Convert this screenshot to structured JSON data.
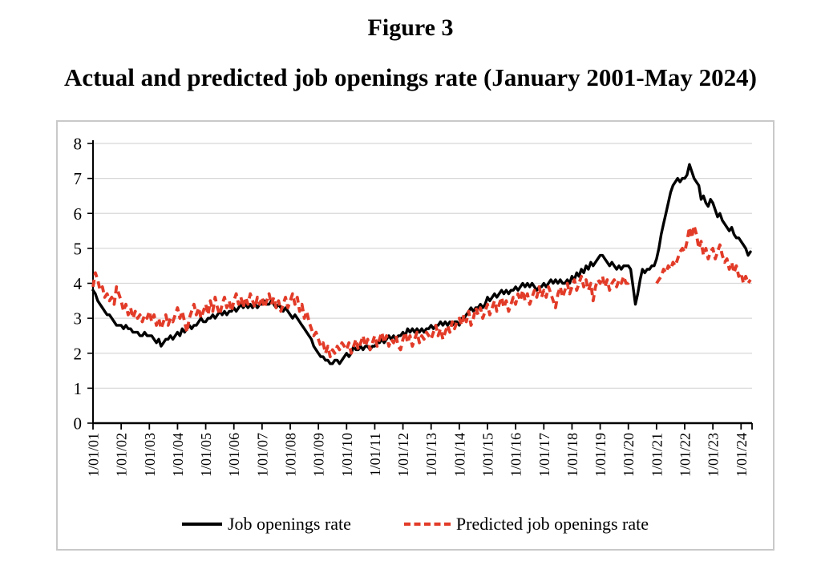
{
  "figure": {
    "label": "Figure 3",
    "title": "Actual and predicted job openings rate (January 2001-May 2024)"
  },
  "colors": {
    "actual_line": "#000000",
    "predicted_line": "#e23b28",
    "gridline": "#d8d8d8",
    "frame_border": "#c9c9c9",
    "axis": "#000000"
  },
  "chart_data": {
    "type": "line",
    "title": "Actual and predicted job openings rate (January 2001-May 2024)",
    "x_start": "1/01/01",
    "x_end": "5/01/24",
    "x_frequency": "monthly",
    "x_tick_labels": [
      "1/01/01",
      "1/01/02",
      "1/01/03",
      "1/01/04",
      "1/01/05",
      "1/01/06",
      "1/01/07",
      "1/01/08",
      "1/01/09",
      "1/01/10",
      "1/01/11",
      "1/01/12",
      "1/01/13",
      "1/01/14",
      "1/01/15",
      "1/01/16",
      "1/01/17",
      "1/01/18",
      "1/01/19",
      "1/01/20",
      "1/01/21",
      "1/01/22",
      "1/01/23",
      "1/01/24"
    ],
    "ylim": [
      0,
      8
    ],
    "y_ticks": [
      0,
      1,
      2,
      3,
      4,
      5,
      6,
      7,
      8
    ],
    "grid": "horizontal",
    "legend_position": "bottom-center",
    "series": [
      {
        "name": "Job openings rate",
        "color": "#000000",
        "style": "solid",
        "values": [
          3.8,
          3.7,
          3.5,
          3.4,
          3.3,
          3.2,
          3.1,
          3.1,
          3.0,
          2.9,
          2.8,
          2.8,
          2.8,
          2.7,
          2.8,
          2.7,
          2.7,
          2.6,
          2.6,
          2.6,
          2.5,
          2.5,
          2.6,
          2.5,
          2.5,
          2.5,
          2.4,
          2.3,
          2.4,
          2.2,
          2.3,
          2.4,
          2.4,
          2.5,
          2.4,
          2.5,
          2.6,
          2.5,
          2.7,
          2.6,
          2.7,
          2.8,
          2.7,
          2.8,
          2.8,
          2.9,
          3.0,
          2.9,
          2.9,
          3.0,
          3.0,
          3.1,
          3.0,
          3.1,
          3.2,
          3.1,
          3.2,
          3.1,
          3.2,
          3.2,
          3.3,
          3.2,
          3.3,
          3.4,
          3.3,
          3.4,
          3.3,
          3.4,
          3.3,
          3.4,
          3.3,
          3.4,
          3.4,
          3.5,
          3.4,
          3.4,
          3.5,
          3.4,
          3.3,
          3.4,
          3.3,
          3.2,
          3.3,
          3.2,
          3.1,
          3.0,
          3.1,
          3.0,
          2.9,
          2.8,
          2.7,
          2.6,
          2.5,
          2.4,
          2.2,
          2.1,
          2.0,
          1.9,
          1.9,
          1.8,
          1.8,
          1.7,
          1.7,
          1.8,
          1.8,
          1.7,
          1.8,
          1.9,
          2.0,
          1.9,
          2.0,
          2.2,
          2.1,
          2.1,
          2.2,
          2.1,
          2.2,
          2.2,
          2.1,
          2.2,
          2.2,
          2.3,
          2.3,
          2.4,
          2.3,
          2.4,
          2.5,
          2.4,
          2.5,
          2.4,
          2.5,
          2.5,
          2.6,
          2.5,
          2.7,
          2.6,
          2.7,
          2.6,
          2.7,
          2.6,
          2.7,
          2.6,
          2.7,
          2.7,
          2.8,
          2.7,
          2.8,
          2.8,
          2.9,
          2.8,
          2.9,
          2.8,
          2.9,
          2.8,
          2.9,
          2.9,
          2.8,
          3.0,
          3.0,
          3.1,
          3.2,
          3.3,
          3.2,
          3.3,
          3.3,
          3.4,
          3.3,
          3.4,
          3.6,
          3.5,
          3.6,
          3.7,
          3.6,
          3.7,
          3.8,
          3.7,
          3.8,
          3.7,
          3.8,
          3.8,
          3.9,
          3.8,
          3.9,
          4.0,
          3.9,
          4.0,
          3.9,
          4.0,
          3.9,
          3.8,
          3.9,
          3.9,
          4.0,
          3.9,
          4.0,
          4.1,
          4.0,
          4.1,
          4.0,
          4.1,
          4.0,
          4.0,
          4.1,
          4.0,
          4.2,
          4.1,
          4.3,
          4.2,
          4.4,
          4.3,
          4.5,
          4.4,
          4.6,
          4.5,
          4.6,
          4.7,
          4.8,
          4.8,
          4.7,
          4.6,
          4.5,
          4.6,
          4.5,
          4.4,
          4.5,
          4.4,
          4.5,
          4.5,
          4.5,
          4.4,
          3.9,
          3.4,
          3.7,
          4.1,
          4.4,
          4.3,
          4.4,
          4.4,
          4.5,
          4.5,
          4.7,
          5.0,
          5.4,
          5.7,
          6.0,
          6.3,
          6.6,
          6.8,
          6.9,
          7.0,
          6.9,
          7.0,
          7.0,
          7.1,
          7.4,
          7.2,
          7.0,
          6.9,
          6.8,
          6.4,
          6.5,
          6.3,
          6.2,
          6.4,
          6.3,
          6.1,
          5.9,
          6.0,
          5.8,
          5.7,
          5.6,
          5.5,
          5.6,
          5.4,
          5.3,
          5.3,
          5.2,
          5.1,
          5.0,
          4.8,
          4.9
        ]
      },
      {
        "name": "Predicted job openings rate",
        "color": "#e23b28",
        "style": "dashed",
        "values": [
          3.9,
          4.3,
          4.1,
          3.8,
          3.9,
          3.6,
          3.7,
          3.5,
          3.6,
          3.4,
          3.9,
          3.7,
          3.5,
          3.2,
          3.4,
          3.1,
          3.3,
          3.0,
          3.2,
          3.0,
          3.1,
          2.9,
          3.1,
          3.0,
          3.2,
          2.9,
          3.1,
          2.8,
          3.0,
          2.7,
          2.9,
          3.1,
          2.8,
          3.0,
          2.9,
          3.1,
          3.3,
          3.0,
          3.2,
          2.9,
          2.6,
          3.0,
          3.2,
          3.4,
          3.1,
          3.3,
          3.0,
          3.2,
          3.4,
          3.1,
          3.5,
          3.2,
          3.6,
          3.3,
          3.1,
          3.4,
          3.6,
          3.3,
          3.5,
          3.2,
          3.5,
          3.7,
          3.4,
          3.6,
          3.3,
          3.6,
          3.4,
          3.7,
          3.5,
          3.3,
          3.6,
          3.4,
          3.6,
          3.3,
          3.5,
          3.7,
          3.4,
          3.6,
          3.3,
          3.5,
          3.2,
          3.4,
          3.6,
          3.3,
          3.5,
          3.7,
          3.4,
          3.6,
          3.2,
          3.4,
          3.0,
          3.2,
          2.9,
          2.7,
          2.5,
          2.6,
          2.4,
          2.2,
          2.3,
          2.0,
          2.2,
          1.9,
          2.1,
          2.0,
          2.2,
          2.1,
          2.3,
          2.2,
          2.1,
          2.3,
          2.0,
          2.2,
          2.4,
          2.1,
          2.3,
          2.5,
          2.2,
          2.4,
          2.1,
          2.3,
          2.5,
          2.2,
          2.4,
          2.6,
          2.3,
          2.5,
          2.2,
          2.4,
          2.3,
          2.5,
          2.2,
          2.1,
          2.4,
          2.6,
          2.3,
          2.5,
          2.2,
          2.4,
          2.6,
          2.3,
          2.5,
          2.4,
          2.6,
          2.5,
          2.4,
          2.6,
          2.8,
          2.5,
          2.7,
          2.4,
          2.6,
          2.8,
          2.6,
          2.9,
          2.7,
          2.9,
          3.0,
          2.8,
          3.1,
          2.9,
          3.2,
          2.8,
          3.0,
          3.3,
          3.1,
          3.3,
          3.0,
          3.2,
          3.4,
          3.1,
          3.3,
          3.5,
          3.2,
          3.4,
          3.6,
          3.3,
          3.5,
          3.2,
          3.4,
          3.6,
          3.4,
          3.7,
          3.5,
          3.8,
          3.5,
          3.7,
          3.4,
          3.6,
          3.8,
          3.6,
          3.9,
          3.6,
          3.8,
          3.6,
          3.9,
          3.7,
          3.5,
          3.3,
          3.7,
          3.9,
          3.6,
          3.8,
          4.0,
          3.7,
          3.9,
          4.1,
          3.8,
          4.0,
          4.2,
          3.9,
          4.1,
          3.8,
          4.0,
          3.5,
          3.9,
          4.1,
          4.0,
          4.2,
          3.9,
          4.1,
          3.8,
          4.0,
          4.1,
          3.9,
          4.1,
          4.0,
          4.2,
          4.0,
          4.0,
          4.1,
          null,
          null,
          null,
          null,
          null,
          null,
          null,
          null,
          null,
          null,
          4.0,
          4.1,
          4.2,
          4.4,
          4.3,
          4.5,
          4.4,
          4.6,
          4.5,
          4.7,
          4.9,
          5.0,
          4.9,
          5.2,
          5.6,
          5.3,
          5.65,
          5.4,
          5.0,
          5.2,
          4.8,
          5.0,
          4.7,
          4.9,
          5.0,
          4.7,
          4.9,
          5.1,
          4.8,
          4.6,
          4.7,
          4.4,
          4.6,
          4.3,
          4.5,
          4.2,
          4.3,
          4.0,
          4.2,
          4.0,
          4.1
        ]
      }
    ]
  }
}
